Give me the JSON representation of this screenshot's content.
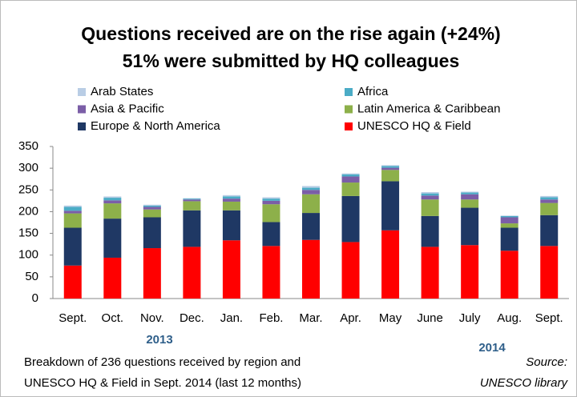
{
  "chart_data": {
    "type": "stacked_bar",
    "title": "Questions received are on the rise again (+24%)",
    "subtitle": "51% were submitted by HQ colleagues",
    "categories": [
      "Sept.",
      "Oct.",
      "Nov.",
      "Dec.",
      "Jan.",
      "Feb.",
      "Mar.",
      "Apr.",
      "May",
      "June",
      "July",
      "Aug.",
      "Sept."
    ],
    "series": [
      {
        "name": "UNESCO HQ & Field",
        "color": "#ff0000",
        "values": [
          76,
          94,
          116,
          119,
          134,
          121,
          135,
          130,
          157,
          119,
          123,
          110,
          121
        ]
      },
      {
        "name": "Europe & North America",
        "color": "#1f3864",
        "values": [
          87,
          90,
          71,
          84,
          69,
          55,
          62,
          106,
          113,
          71,
          86,
          53,
          71
        ]
      },
      {
        "name": "Latin America & Caribbean",
        "color": "#8db04a",
        "values": [
          33,
          35,
          18,
          21,
          20,
          41,
          43,
          31,
          26,
          38,
          19,
          10,
          28
        ]
      },
      {
        "name": "Asia & Pacific",
        "color": "#7b5ea7",
        "values": [
          6,
          7,
          6,
          4,
          7,
          8,
          10,
          14,
          5,
          9,
          12,
          14,
          8
        ]
      },
      {
        "name": "Africa",
        "color": "#4bacc6",
        "values": [
          9,
          6,
          3,
          2,
          5,
          5,
          5,
          5,
          4,
          5,
          4,
          3,
          5
        ]
      },
      {
        "name": "Arab States",
        "color": "#b9cde5",
        "values": [
          3,
          3,
          2,
          1,
          3,
          3,
          4,
          2,
          2,
          3,
          2,
          1,
          3
        ]
      }
    ],
    "ylim": [
      0,
      350
    ],
    "yticks": [
      0,
      50,
      100,
      150,
      200,
      250,
      300,
      350
    ],
    "years": [
      "2013",
      "2014"
    ],
    "note": [
      "Breakdown of 236 questions received  by region and",
      "UNESCO HQ & Field in Sept. 2014 (last 12 months)"
    ],
    "source": [
      "Source:",
      "UNESCO library"
    ]
  }
}
